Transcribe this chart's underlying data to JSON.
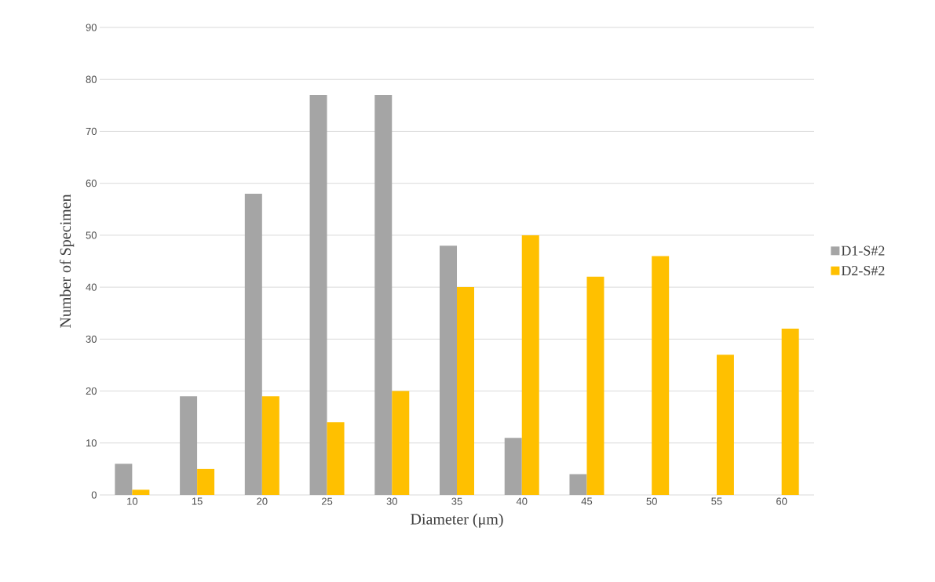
{
  "chart_data": {
    "type": "bar",
    "xlabel": "Diameter (μm)",
    "ylabel": "Number of Specimen",
    "categories": [
      "10",
      "15",
      "20",
      "25",
      "30",
      "35",
      "40",
      "45",
      "50",
      "55",
      "60"
    ],
    "series": [
      {
        "name": "D1-S#2",
        "color": "#a5a5a5",
        "values": [
          6,
          19,
          58,
          77,
          77,
          48,
          11,
          4,
          null,
          null,
          null
        ]
      },
      {
        "name": "D2-S#2",
        "color": "#ffc000",
        "values": [
          1,
          5,
          19,
          14,
          20,
          40,
          50,
          42,
          46,
          27,
          32
        ]
      }
    ],
    "ylim": [
      0,
      90
    ],
    "yticks": [
      0,
      10,
      20,
      30,
      40,
      50,
      60,
      70,
      80,
      90
    ],
    "grid": "y",
    "legend": "right"
  }
}
